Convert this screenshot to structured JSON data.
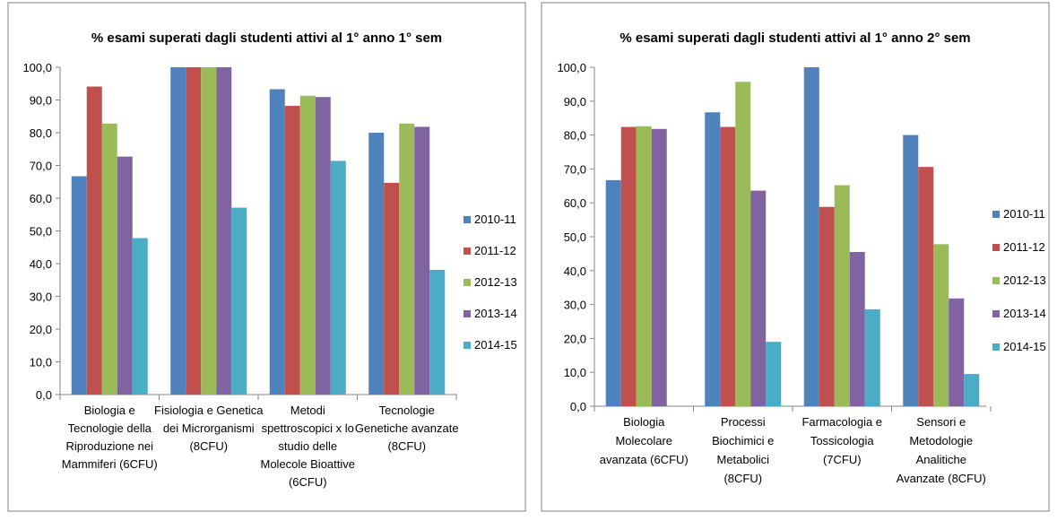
{
  "series_colors": [
    "#4F81BD",
    "#C0504D",
    "#9BBB59",
    "#8064A2",
    "#4BACC6"
  ],
  "chart_data": [
    {
      "type": "bar",
      "title": "% esami superati  dagli   studenti  attivi al  1° anno 1° sem",
      "ylim": [
        0,
        100
      ],
      "yticks": [
        "0,0",
        "10,0",
        "20,0",
        "30,0",
        "40,0",
        "50,0",
        "60,0",
        "70,0",
        "80,0",
        "90,0",
        "100,0"
      ],
      "legend_position": "right",
      "grid": false,
      "categories": [
        [
          "Biologia e",
          "Tecnologie della",
          "Riproduzione nei",
          "Mammiferi (6CFU)"
        ],
        [
          "Fisiologia e Genetica",
          "dei Microrganismi",
          "(8CFU)"
        ],
        [
          "Metodi",
          "spettroscopici x lo",
          "studio delle",
          "Molecole Bioattive",
          "(6CFU)"
        ],
        [
          "Tecnologie",
          "Genetiche avanzate",
          "(8CFU)"
        ]
      ],
      "series": [
        {
          "name": "2010-11",
          "values": [
            66.7,
            100,
            93.3,
            80.0
          ]
        },
        {
          "name": "2011-12",
          "values": [
            94.1,
            100,
            88.2,
            64.7
          ]
        },
        {
          "name": "2012-13",
          "values": [
            82.8,
            100,
            91.3,
            82.8
          ]
        },
        {
          "name": "2013-14",
          "values": [
            72.7,
            100,
            90.9,
            81.8
          ]
        },
        {
          "name": "2014-15",
          "values": [
            47.8,
            57.1,
            71.4,
            38.1
          ]
        }
      ]
    },
    {
      "type": "bar",
      "title": "% esami superati  dagli   studenti  attivi al  1° anno 2° sem",
      "ylim": [
        0,
        100
      ],
      "yticks": [
        "0,0",
        "10,0",
        "20,0",
        "30,0",
        "40,0",
        "50,0",
        "60,0",
        "70,0",
        "80,0",
        "90,0",
        "100,0"
      ],
      "legend_position": "right",
      "grid": false,
      "categories": [
        [
          "Biologia",
          "Molecolare",
          "avanzata (6CFU)"
        ],
        [
          "Processi",
          "Biochimici e",
          "Metabolici",
          "(8CFU)"
        ],
        [
          "Farmacologia e",
          "Tossicologia",
          "(7CFU)"
        ],
        [
          "Sensori e",
          "Metodologie",
          "Analitiche",
          "Avanzate (8CFU)"
        ]
      ],
      "series": [
        {
          "name": "2010-11",
          "values": [
            66.7,
            86.7,
            100,
            80.0
          ]
        },
        {
          "name": "2011-12",
          "values": [
            82.4,
            82.4,
            58.8,
            70.6
          ]
        },
        {
          "name": "2012-13",
          "values": [
            82.6,
            95.7,
            65.2,
            47.8
          ]
        },
        {
          "name": "2013-14",
          "values": [
            81.8,
            63.6,
            45.5,
            31.8
          ]
        },
        {
          "name": "2014-15",
          "values": [
            null,
            19.0,
            28.6,
            9.5
          ]
        }
      ]
    }
  ]
}
